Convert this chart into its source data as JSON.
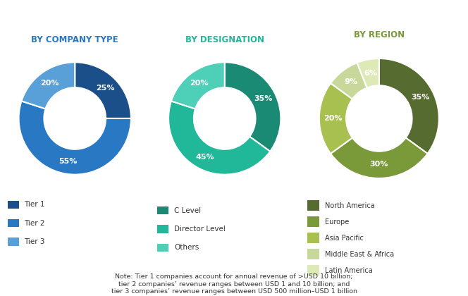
{
  "chart1": {
    "title": "BY COMPANY TYPE",
    "values": [
      25,
      55,
      20
    ],
    "labels": [
      "25%",
      "55%",
      "20%"
    ],
    "colors": [
      "#1a4f8a",
      "#2878c3",
      "#5aa0d8"
    ],
    "legend": [
      "Tier 1",
      "Tier 2",
      "Tier 3"
    ],
    "title_color": "#2878c3"
  },
  "chart2": {
    "title": "BY DESIGNATION",
    "values": [
      35,
      45,
      20
    ],
    "labels": [
      "35%",
      "45%",
      "20%"
    ],
    "colors": [
      "#1a8a75",
      "#21b89a",
      "#4dcfb8"
    ],
    "legend": [
      "C Level",
      "Director Level",
      "Others"
    ],
    "title_color": "#21b89a"
  },
  "chart3": {
    "title": "BY REGION",
    "values": [
      35,
      30,
      20,
      9,
      6
    ],
    "labels": [
      "35%",
      "30%",
      "20%",
      "9%",
      "6%"
    ],
    "colors": [
      "#556b2f",
      "#7a9a3a",
      "#a8c050",
      "#c8d89a",
      "#ddeab8"
    ],
    "legend": [
      "North America",
      "Europe",
      "Asia Pacific",
      "Middle East & Africa",
      "Latin America"
    ],
    "title_color": "#7a9a3a"
  },
  "note_line1": "Note: Tier 1 companies account for annual revenue of >USD 10 billion;",
  "note_line2": "tier 2 companies’ revenue ranges between USD 1 and 10 billion; and",
  "note_line3": "tier 3 companies’ revenue ranges between USD 500 million–USD 1 billion"
}
